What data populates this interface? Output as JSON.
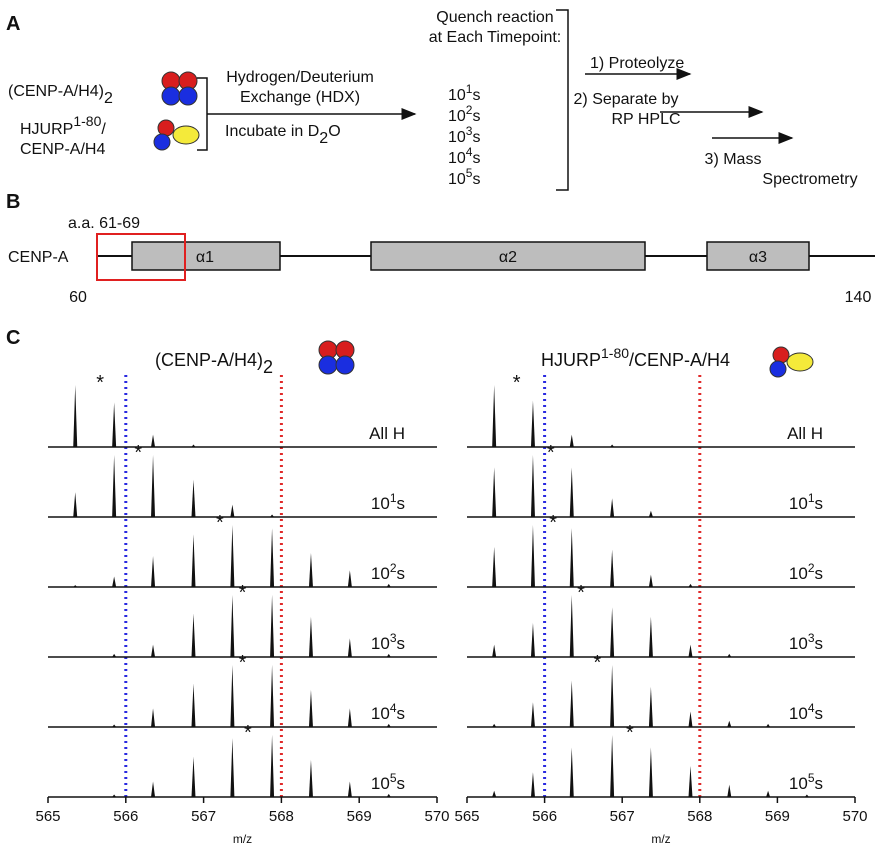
{
  "panel_a": {
    "label": "A",
    "complex1": {
      "text": "(CENP-A/H4)",
      "sub": "2"
    },
    "complex2": {
      "text": "HJURP",
      "sup": "1-80",
      "end": "/",
      "line2": "CENP-A/H4"
    },
    "exchange": [
      "Hydrogen/Deuterium",
      "Exchange (HDX)"
    ],
    "incubate": {
      "text": "Incubate in D",
      "sub": "2",
      "end": "O"
    },
    "quench": [
      "Quench reaction",
      "at Each Timepoint:"
    ],
    "timepoints": [
      {
        "base": "10",
        "exp": "1",
        "unit": "s"
      },
      {
        "base": "10",
        "exp": "2",
        "unit": "s"
      },
      {
        "base": "10",
        "exp": "3",
        "unit": "s"
      },
      {
        "base": "10",
        "exp": "4",
        "unit": "s"
      },
      {
        "base": "10",
        "exp": "5",
        "unit": "s"
      }
    ],
    "steps": [
      [
        "1) Proteolyze"
      ],
      [
        "2) Separate by",
        "RP HPLC"
      ],
      [
        "3) Mass",
        "Spectrometry"
      ]
    ]
  },
  "panel_b": {
    "label": "B",
    "protein": "CENP-A",
    "region": "a.a. 61-69",
    "helices": [
      "α1",
      "α2",
      "α3"
    ],
    "start": 60,
    "end": 140
  },
  "panel_c": {
    "label": "C",
    "xlim": [
      565,
      570
    ],
    "xticks": [
      565,
      566,
      567,
      568,
      569,
      570
    ],
    "xlabel": "m/z",
    "star_symbol": "*",
    "blue_line": 566,
    "red_line": 568,
    "blue_color": "#2a2ae0",
    "red_color": "#e02a2a",
    "panels": [
      {
        "title": {
          "text": "(CENP-A/H4)",
          "sub": "2"
        },
        "spectra": [
          {
            "label": {
              "text": "All H"
            },
            "mz": [
              565.35,
              565.85,
              566.35,
              566.87
            ],
            "intensity": [
              1.0,
              0.72,
              0.2,
              0.04
            ],
            "star": 565.67
          },
          {
            "label": {
              "base": "10",
              "exp": "1",
              "unit": "s"
            },
            "mz": [
              565.35,
              565.85,
              566.35,
              566.87,
              567.37,
              567.88
            ],
            "intensity": [
              0.4,
              1.0,
              1.0,
              0.6,
              0.2,
              0.04
            ],
            "star": 566.16
          },
          {
            "label": {
              "base": "10",
              "exp": "2",
              "unit": "s"
            },
            "mz": [
              565.35,
              565.85,
              566.35,
              566.87,
              567.37,
              567.88,
              568.38,
              568.88,
              569.38
            ],
            "intensity": [
              0.03,
              0.17,
              0.5,
              0.85,
              1.0,
              0.95,
              0.55,
              0.27,
              0.05
            ],
            "star": 567.21
          },
          {
            "label": {
              "base": "10",
              "exp": "3",
              "unit": "s"
            },
            "mz": [
              565.85,
              566.35,
              566.87,
              567.37,
              567.88,
              568.38,
              568.88,
              569.38
            ],
            "intensity": [
              0.05,
              0.2,
              0.7,
              1.0,
              1.0,
              0.65,
              0.3,
              0.05
            ],
            "star": 567.5
          },
          {
            "label": {
              "base": "10",
              "exp": "4",
              "unit": "s"
            },
            "mz": [
              565.85,
              566.35,
              566.87,
              567.37,
              567.88,
              568.38,
              568.88,
              569.38
            ],
            "intensity": [
              0.04,
              0.3,
              0.7,
              1.0,
              1.0,
              0.6,
              0.3,
              0.05
            ],
            "star": 567.5
          },
          {
            "label": {
              "base": "10",
              "exp": "5",
              "unit": "s"
            },
            "mz": [
              565.85,
              566.35,
              566.87,
              567.37,
              567.88,
              568.38,
              568.88,
              569.38
            ],
            "intensity": [
              0.04,
              0.25,
              0.65,
              0.95,
              1.0,
              0.6,
              0.25,
              0.05
            ],
            "star": 567.57
          }
        ]
      },
      {
        "title": {
          "text": "HJURP",
          "sup": "1-80",
          "end": "/CENP-A/H4"
        },
        "spectra": [
          {
            "label": {
              "text": "All H"
            },
            "mz": [
              565.35,
              565.85,
              566.35,
              566.87
            ],
            "intensity": [
              1.0,
              0.75,
              0.2,
              0.04
            ],
            "star": 565.64
          },
          {
            "label": {
              "base": "10",
              "exp": "1",
              "unit": "s"
            },
            "mz": [
              565.35,
              565.85,
              566.35,
              566.87,
              567.37
            ],
            "intensity": [
              0.8,
              1.0,
              0.8,
              0.3,
              0.1
            ],
            "star": 566.08
          },
          {
            "label": {
              "base": "10",
              "exp": "2",
              "unit": "s"
            },
            "mz": [
              565.35,
              565.85,
              566.35,
              566.87,
              567.37,
              567.88
            ],
            "intensity": [
              0.65,
              1.0,
              0.95,
              0.6,
              0.2,
              0.05
            ],
            "star": 566.11
          },
          {
            "label": {
              "base": "10",
              "exp": "3",
              "unit": "s"
            },
            "mz": [
              565.35,
              565.85,
              566.35,
              566.87,
              567.37,
              567.88,
              568.38
            ],
            "intensity": [
              0.2,
              0.55,
              1.0,
              0.8,
              0.65,
              0.2,
              0.05
            ],
            "star": 566.47
          },
          {
            "label": {
              "base": "10",
              "exp": "4",
              "unit": "s"
            },
            "mz": [
              565.35,
              565.85,
              566.35,
              566.87,
              567.37,
              567.88,
              568.38,
              568.88
            ],
            "intensity": [
              0.05,
              0.4,
              0.75,
              1.0,
              0.65,
              0.25,
              0.1,
              0.05
            ],
            "star": 566.68
          },
          {
            "label": {
              "base": "10",
              "exp": "5",
              "unit": "s"
            },
            "mz": [
              565.35,
              565.85,
              566.35,
              566.87,
              567.37,
              567.88,
              568.38,
              568.88,
              569.38
            ],
            "intensity": [
              0.1,
              0.4,
              0.8,
              1.0,
              0.8,
              0.5,
              0.2,
              0.1,
              0.04
            ],
            "star": 567.1
          }
        ]
      }
    ]
  }
}
